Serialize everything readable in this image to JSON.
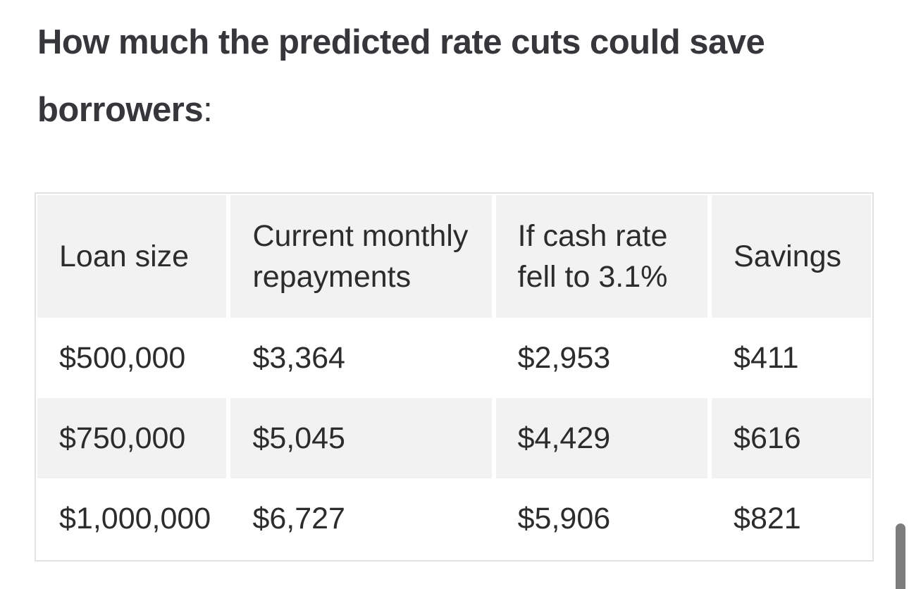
{
  "heading": {
    "text": "How much the predicted rate cuts could save borrowers",
    "colon": ":"
  },
  "table": {
    "columns": [
      "Loan size",
      "Current monthly repayments",
      "If cash rate fell to 3.1%",
      "Savings"
    ],
    "rows": [
      [
        "$500,000",
        "$3,364",
        "$2,953",
        "$411"
      ],
      [
        "$750,000",
        "$5,045",
        "$4,429",
        "$616"
      ],
      [
        "$1,000,000",
        "$6,727",
        "$5,906",
        "$821"
      ]
    ]
  },
  "colors": {
    "heading_text": "#36363b",
    "body_text": "#2c2c2c",
    "cell_background": "#f2f2f2",
    "table_border": "#e2e2e2",
    "scrollbar_thumb": "#7d7d7d",
    "page_background": "#ffffff"
  }
}
